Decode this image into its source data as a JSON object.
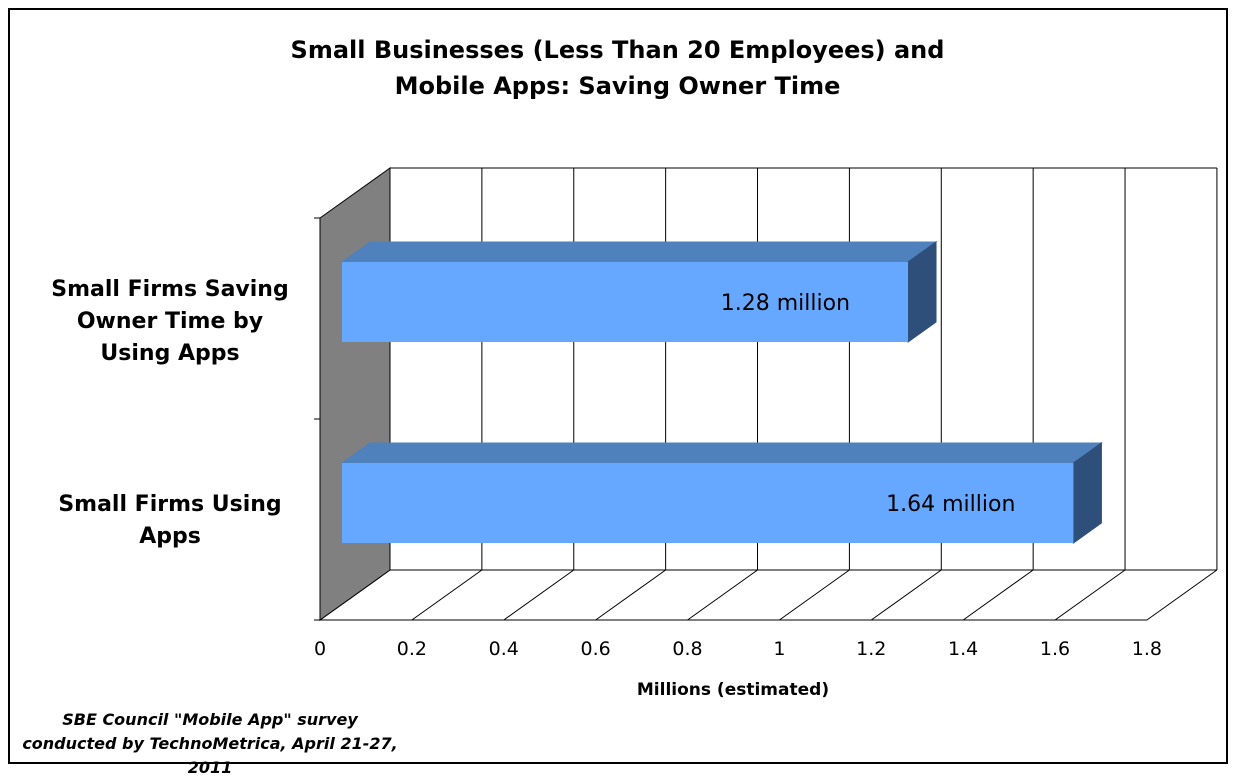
{
  "chart_data": {
    "type": "bar",
    "orientation": "horizontal",
    "three_d": true,
    "title_lines": [
      "Small Businesses (Less Than 20 Employees) and",
      "Mobile Apps: Saving Owner Time"
    ],
    "categories": [
      [
        "Small Firms Saving",
        "Owner Time by",
        "Using Apps"
      ],
      [
        "Small Firms Using",
        "Apps"
      ]
    ],
    "values": [
      1.28,
      1.64
    ],
    "data_labels": [
      "1.28 million",
      "1.64 million"
    ],
    "xlabel": "Millions (estimated)",
    "xlim": [
      0,
      1.8
    ],
    "x_ticks": [
      "0",
      "0.2",
      "0.4",
      "0.6",
      "0.8",
      "1",
      "1.2",
      "1.4",
      "1.6",
      "1.8"
    ],
    "grid": true,
    "legend": "none"
  },
  "footnote": [
    "SBE Council \"Mobile App\" survey",
    "conducted by TechnoMetrica, April 21-27, 2011"
  ],
  "colors": {
    "bar_front": "#66a8ff",
    "bar_top": "#4f81bd",
    "bar_side": "#2e4f7a",
    "wall_side": "#808080",
    "grid": "#000000"
  }
}
